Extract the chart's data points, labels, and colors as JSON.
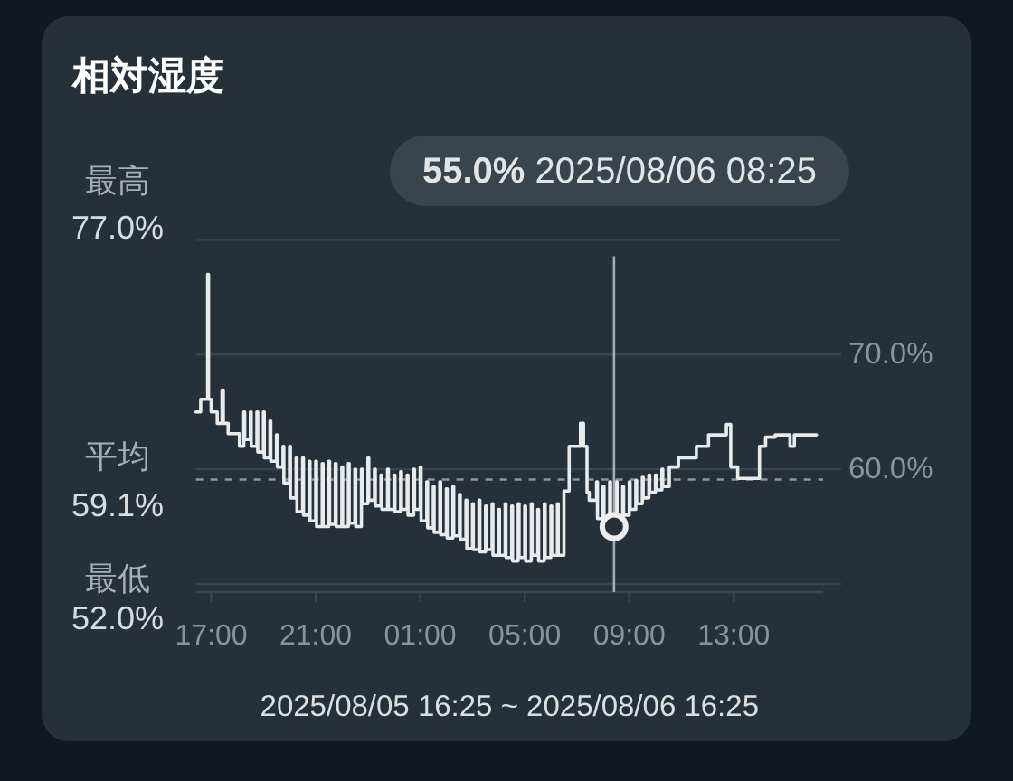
{
  "chart_data": {
    "type": "step",
    "title": "相対湿度",
    "xlabel": "2025/08/05 16:25 ~ 2025/08/06 16:25",
    "annotations": [
      "最高 77.0%",
      "55.0% 2025/08/06 08:25",
      "最低 52.0%"
    ],
    "ref_lines": [
      {
        "axis": "y",
        "value": 59.1,
        "label": "平均 59.1%",
        "line_style": "dashed",
        "color": "#8e959b"
      },
      {
        "axis": "x",
        "value": "2025-08-06T08:25",
        "color": "#a7adb2"
      }
    ],
    "xlim": [
      "2025-08-05T16:25",
      "2025-08-06T16:25"
    ],
    "xticks": [
      {
        "value": "2025-08-05T17:00",
        "label": "17:00"
      },
      {
        "value": "2025-08-05T21:00",
        "label": "21:00"
      },
      {
        "value": "2025-08-06T01:00",
        "label": "01:00"
      },
      {
        "value": "2025-08-06T05:00",
        "label": "05:00"
      },
      {
        "value": "2025-08-06T09:00",
        "label": "09:00"
      },
      {
        "value": "2025-08-06T13:00",
        "label": "13:00"
      }
    ],
    "ylim": [
      50,
      80
    ],
    "yticks": [
      {
        "value": 50,
        "label": null
      },
      {
        "value": 60,
        "label": "60.0%"
      },
      {
        "value": 70,
        "label": "70.0%"
      },
      {
        "value": 80,
        "label": null
      }
    ],
    "grid": "y",
    "series": [
      {
        "color": "#e8eaec",
        "x": [
          "2025-08-05T16:25",
          "2025-08-05T16:36",
          "2025-08-05T16:52",
          "2025-08-05T16:54",
          "2025-08-05T17:00",
          "2025-08-05T17:14",
          "2025-08-05T17:25",
          "2025-08-05T17:28",
          "2025-08-05T17:39",
          "2025-08-05T18:05",
          "2025-08-05T18:15",
          "2025-08-05T18:17",
          "2025-08-05T18:30",
          "2025-08-05T18:32",
          "2025-08-05T18:45",
          "2025-08-05T18:47",
          "2025-08-05T19:00",
          "2025-08-05T19:02",
          "2025-08-05T19:15",
          "2025-08-05T19:17",
          "2025-08-05T19:30",
          "2025-08-05T19:32",
          "2025-08-05T19:45",
          "2025-08-05T19:47",
          "2025-08-05T20:00",
          "2025-08-05T20:02",
          "2025-08-05T20:15",
          "2025-08-05T20:17",
          "2025-08-05T20:30",
          "2025-08-05T20:32",
          "2025-08-05T20:45",
          "2025-08-05T20:47",
          "2025-08-05T21:00",
          "2025-08-05T21:02",
          "2025-08-05T21:15",
          "2025-08-05T21:17",
          "2025-08-05T21:30",
          "2025-08-05T21:32",
          "2025-08-05T21:45",
          "2025-08-05T21:47",
          "2025-08-05T22:00",
          "2025-08-05T22:02",
          "2025-08-05T22:15",
          "2025-08-05T22:17",
          "2025-08-05T22:30",
          "2025-08-05T22:32",
          "2025-08-05T22:45",
          "2025-08-05T22:47",
          "2025-08-05T23:00",
          "2025-08-05T23:02",
          "2025-08-05T23:15",
          "2025-08-05T23:17",
          "2025-08-05T23:30",
          "2025-08-05T23:32",
          "2025-08-05T23:45",
          "2025-08-05T23:47",
          "2025-08-06T00:00",
          "2025-08-06T00:02",
          "2025-08-06T00:15",
          "2025-08-06T00:17",
          "2025-08-06T00:30",
          "2025-08-06T00:32",
          "2025-08-06T00:45",
          "2025-08-06T00:47",
          "2025-08-06T01:00",
          "2025-08-06T01:02",
          "2025-08-06T01:15",
          "2025-08-06T01:17",
          "2025-08-06T01:30",
          "2025-08-06T01:32",
          "2025-08-06T01:45",
          "2025-08-06T01:47",
          "2025-08-06T02:00",
          "2025-08-06T02:02",
          "2025-08-06T02:15",
          "2025-08-06T02:17",
          "2025-08-06T02:30",
          "2025-08-06T02:32",
          "2025-08-06T02:45",
          "2025-08-06T02:47",
          "2025-08-06T03:00",
          "2025-08-06T03:02",
          "2025-08-06T03:15",
          "2025-08-06T03:17",
          "2025-08-06T03:30",
          "2025-08-06T03:32",
          "2025-08-06T03:45",
          "2025-08-06T03:47",
          "2025-08-06T04:00",
          "2025-08-06T04:02",
          "2025-08-06T04:15",
          "2025-08-06T04:17",
          "2025-08-06T04:30",
          "2025-08-06T04:32",
          "2025-08-06T04:45",
          "2025-08-06T04:47",
          "2025-08-06T05:00",
          "2025-08-06T05:02",
          "2025-08-06T05:15",
          "2025-08-06T05:17",
          "2025-08-06T05:30",
          "2025-08-06T05:32",
          "2025-08-06T05:45",
          "2025-08-06T05:47",
          "2025-08-06T06:00",
          "2025-08-06T06:02",
          "2025-08-06T06:15",
          "2025-08-06T06:17",
          "2025-08-06T06:30",
          "2025-08-06T06:42",
          "2025-08-06T07:08",
          "2025-08-06T07:15",
          "2025-08-06T07:23",
          "2025-08-06T07:28",
          "2025-08-06T07:45",
          "2025-08-06T07:47",
          "2025-08-06T08:00",
          "2025-08-06T08:02",
          "2025-08-06T08:15",
          "2025-08-06T08:17",
          "2025-08-06T08:30",
          "2025-08-06T08:32",
          "2025-08-06T08:45",
          "2025-08-06T08:47",
          "2025-08-06T09:00",
          "2025-08-06T09:02",
          "2025-08-06T09:15",
          "2025-08-06T09:17",
          "2025-08-06T09:30",
          "2025-08-06T09:32",
          "2025-08-06T09:45",
          "2025-08-06T09:47",
          "2025-08-06T10:00",
          "2025-08-06T10:02",
          "2025-08-06T10:15",
          "2025-08-06T10:17",
          "2025-08-06T10:32",
          "2025-08-06T10:53",
          "2025-08-06T11:34",
          "2025-08-06T12:02",
          "2025-08-06T12:43",
          "2025-08-06T12:53",
          "2025-08-06T13:09",
          "2025-08-06T13:59",
          "2025-08-06T14:13",
          "2025-08-06T14:35",
          "2025-08-06T15:09",
          "2025-08-06T15:19",
          "2025-08-06T16:10"
        ],
        "values": [
          65.0,
          66.1,
          77.0,
          66.1,
          65.0,
          64.0,
          66.9,
          64.0,
          63.1,
          62.0,
          65.0,
          62.6,
          65.0,
          62.0,
          65.0,
          61.5,
          65.0,
          61.0,
          64.2,
          60.7,
          63.0,
          60.2,
          62.0,
          58.8,
          62.0,
          57.5,
          61.0,
          56.3,
          61.0,
          56.0,
          60.7,
          55.5,
          60.7,
          55.0,
          60.5,
          55.0,
          60.7,
          55.2,
          60.5,
          55.0,
          60.2,
          55.0,
          60.5,
          55.3,
          60.0,
          55.0,
          60.0,
          57.0,
          61.0,
          57.3,
          60.0,
          56.8,
          59.5,
          56.5,
          60.0,
          56.5,
          59.5,
          56.3,
          59.8,
          56.5,
          59.5,
          56.0,
          60.0,
          56.5,
          60.2,
          55.5,
          58.9,
          54.9,
          58.5,
          54.5,
          58.9,
          54.3,
          58.3,
          54.0,
          58.5,
          54.2,
          57.8,
          53.9,
          57.3,
          53.1,
          57.0,
          53.0,
          57.3,
          52.8,
          56.8,
          53.0,
          57.0,
          52.5,
          56.5,
          52.5,
          57.0,
          52.3,
          56.8,
          52.0,
          57.0,
          52.3,
          56.8,
          52.0,
          57.0,
          52.5,
          56.5,
          52.0,
          57.0,
          52.3,
          56.8,
          52.5,
          57.0,
          52.5,
          58.1,
          62.0,
          64.0,
          62.0,
          58.0,
          57.3,
          58.9,
          55.7,
          58.5,
          55.5,
          58.9,
          55.0,
          58.9,
          55.7,
          58.5,
          56.0,
          58.9,
          56.5,
          59.0,
          57.0,
          59.3,
          57.5,
          59.5,
          58.0,
          59.5,
          58.2,
          60.0,
          58.5,
          60.2,
          61.0,
          62.0,
          63.0,
          63.9,
          60.2,
          59.2,
          62.0,
          62.8,
          63.0,
          62.0,
          63.0,
          63.0
        ]
      },
      {
        "type": "scatter",
        "color": "#eceef0",
        "marker": "circle",
        "x": [
          "2025-08-06T08:25"
        ],
        "values": [
          55.0
        ]
      }
    ]
  }
}
